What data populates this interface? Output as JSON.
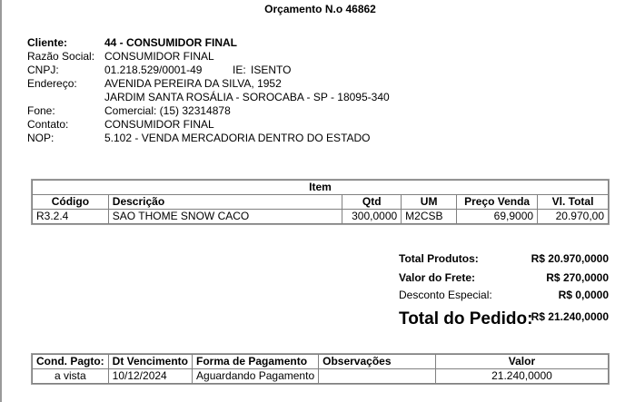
{
  "title": "Orçamento N.o 46862",
  "info": [
    {
      "label": "Cliente:",
      "value": "44 - CONSUMIDOR FINAL"
    },
    {
      "label": "Razão Social:",
      "value": "CONSUMIDOR FINAL"
    },
    {
      "label": "CNPJ:",
      "value": "01.218.529/0001-49",
      "ie_label": "IE:",
      "ie_value": "ISENTO"
    },
    {
      "label": "Endereço:",
      "value": "AVENIDA PEREIRA DA SILVA, 1952"
    },
    {
      "label": "",
      "value": "JARDIM SANTA ROSÁLIA - SOROCABA - SP - 18095-340"
    },
    {
      "label": "Fone:",
      "value": "Comercial: (15) 32314878"
    },
    {
      "label": "Contato:",
      "value": "CONSUMIDOR FINAL"
    },
    {
      "label": "NOP:",
      "value": "5.102 - VENDA MERCADORIA DENTRO DO ESTADO"
    }
  ],
  "items": {
    "caption": "Item",
    "headers": [
      "Código",
      "Descrição",
      "Qtd",
      "UM",
      "Preço Venda",
      "Vl. Total"
    ],
    "rows": [
      [
        "R3.2.4",
        "SAO THOME SNOW CACO",
        "300,0000",
        "M2CSB",
        "69,9000",
        "20.970,00"
      ]
    ]
  },
  "totals": {
    "produtos_label": "Total Produtos:",
    "produtos": "R$ 20.970,0000",
    "frete_label": "Valor do Frete:",
    "frete": "R$ 270,0000",
    "desconto_label": "Desconto Especial:",
    "desconto": "R$ 0,0000",
    "pedido_label": "Total do Pedido:",
    "pedido": "R$ 21.240,0000"
  },
  "payment": {
    "headers": [
      "Cond. Pagto:",
      "Dt Vencimento",
      "Forma de Pagamento",
      "Observações",
      "Valor"
    ],
    "rows": [
      [
        "a vista",
        "10/12/2024",
        "Aguardando Pagamento",
        "",
        "21.240,0000"
      ]
    ]
  }
}
